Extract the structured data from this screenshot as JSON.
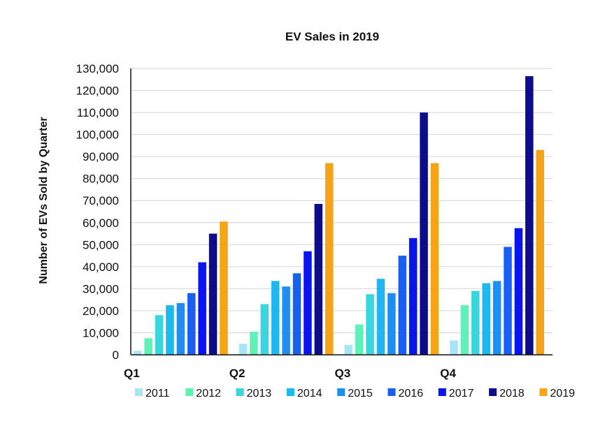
{
  "chart_data": {
    "type": "bar",
    "title": "EV Sales in 2019",
    "xlabel": "",
    "ylabel": "Number of EVs Sold by Quarter",
    "categories": [
      "Q1",
      "Q2",
      "Q3",
      "Q4"
    ],
    "ylim": [
      0,
      130000
    ],
    "yticks": [
      0,
      10000,
      20000,
      30000,
      40000,
      50000,
      60000,
      70000,
      80000,
      90000,
      100000,
      110000,
      120000,
      130000
    ],
    "ytick_labels": [
      "0",
      "10,000",
      "20,000",
      "30,000",
      "40,000",
      "50,000",
      "60,000",
      "70,000",
      "80,000",
      "90,000",
      "100,000",
      "110,000",
      "120,000",
      "130,000"
    ],
    "grid": true,
    "legend_position": "bottom",
    "series": [
      {
        "name": "2011",
        "color": "#a8e4f7",
        "values": [
          1800,
          5000,
          4500,
          6500
        ]
      },
      {
        "name": "2012",
        "color": "#5ff2b8",
        "values": [
          7500,
          10500,
          13800,
          22500
        ]
      },
      {
        "name": "2013",
        "color": "#3ad6e0",
        "values": [
          18000,
          23000,
          27500,
          29000
        ]
      },
      {
        "name": "2014",
        "color": "#1cb8ee",
        "values": [
          22500,
          33500,
          34500,
          32500
        ]
      },
      {
        "name": "2015",
        "color": "#1e8ff0",
        "values": [
          23500,
          31000,
          28000,
          33500
        ]
      },
      {
        "name": "2016",
        "color": "#1a5ef2",
        "values": [
          28000,
          37000,
          45000,
          49000
        ]
      },
      {
        "name": "2017",
        "color": "#0a14ec",
        "values": [
          42000,
          47000,
          53000,
          57500
        ]
      },
      {
        "name": "2018",
        "color": "#0d0d8c",
        "values": [
          55000,
          68500,
          110000,
          126500
        ]
      },
      {
        "name": "2019",
        "color": "#f5a417",
        "values": [
          60500,
          87000,
          87000,
          93000
        ]
      }
    ]
  }
}
